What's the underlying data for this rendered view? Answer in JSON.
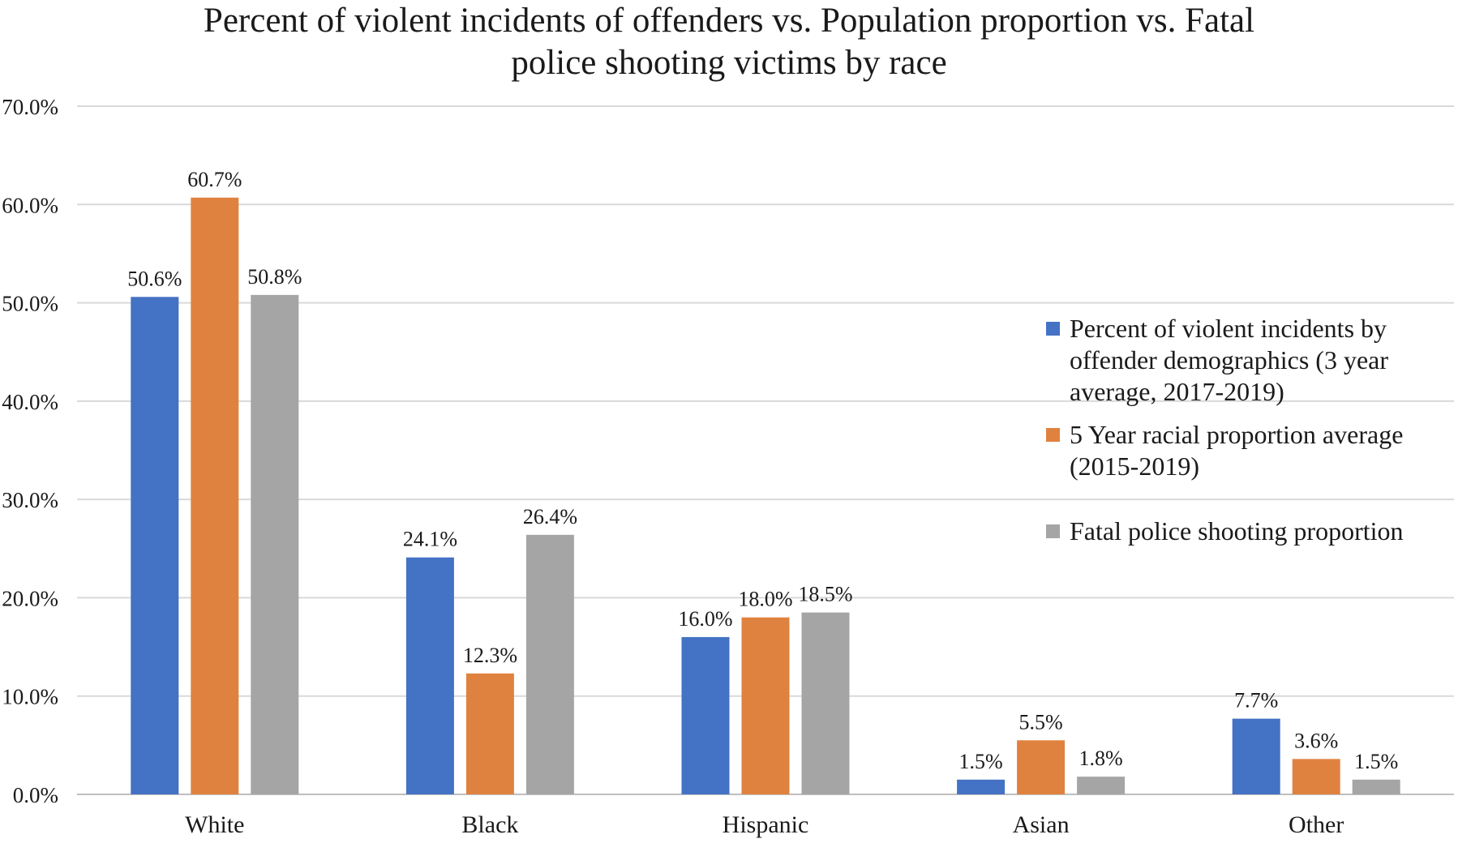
{
  "colors": {
    "white_bg": "#ffffff",
    "grid": "#d9d9d9",
    "axis": "#bfbfbf",
    "series1": "#4472C4",
    "series2": "#E0823F",
    "series3": "#A5A5A5"
  },
  "chart_data": {
    "type": "bar",
    "title_lines": [
      "Percent of violent incidents of offenders vs. Population proportion vs. Fatal",
      "police shooting victims by race"
    ],
    "title": "Percent of violent incidents of offenders vs. Population proportion vs. Fatal police shooting victims by race",
    "xlabel": "",
    "ylabel": "",
    "ylim": [
      0,
      70
    ],
    "yticks": [
      0,
      10,
      20,
      30,
      40,
      50,
      60,
      70
    ],
    "ytick_labels": [
      "0.0%",
      "10.0%",
      "20.0%",
      "30.0%",
      "40.0%",
      "50.0%",
      "60.0%",
      "70.0%"
    ],
    "grid": true,
    "legend_position": "right",
    "categories": [
      "White",
      "Black",
      "Hispanic",
      "Asian",
      "Other"
    ],
    "series": [
      {
        "name": "Percent of violent incidents by offender demographics (3 year average, 2017-2019)",
        "legend_lines": [
          "Percent of violent incidents by",
          "offender demographics (3 year",
          "average, 2017-2019)"
        ],
        "color": "#4472C4",
        "values": [
          50.6,
          24.1,
          16.0,
          1.5,
          7.7
        ],
        "labels": [
          "50.6%",
          "24.1%",
          "16.0%",
          "1.5%",
          "7.7%"
        ]
      },
      {
        "name": "5 Year racial proportion average (2015-2019)",
        "legend_lines": [
          "5 Year racial proportion average",
          "(2015-2019)"
        ],
        "color": "#E0823F",
        "values": [
          60.7,
          12.3,
          18.0,
          5.5,
          3.6
        ],
        "labels": [
          "60.7%",
          "12.3%",
          "18.0%",
          "5.5%",
          "3.6%"
        ]
      },
      {
        "name": "Fatal police shooting proportion",
        "legend_lines": [
          "Fatal police shooting proportion"
        ],
        "color": "#A5A5A5",
        "values": [
          50.8,
          26.4,
          18.5,
          1.8,
          1.5
        ],
        "labels": [
          "50.8%",
          "26.4%",
          "18.5%",
          "1.8%",
          "1.5%"
        ]
      }
    ]
  }
}
